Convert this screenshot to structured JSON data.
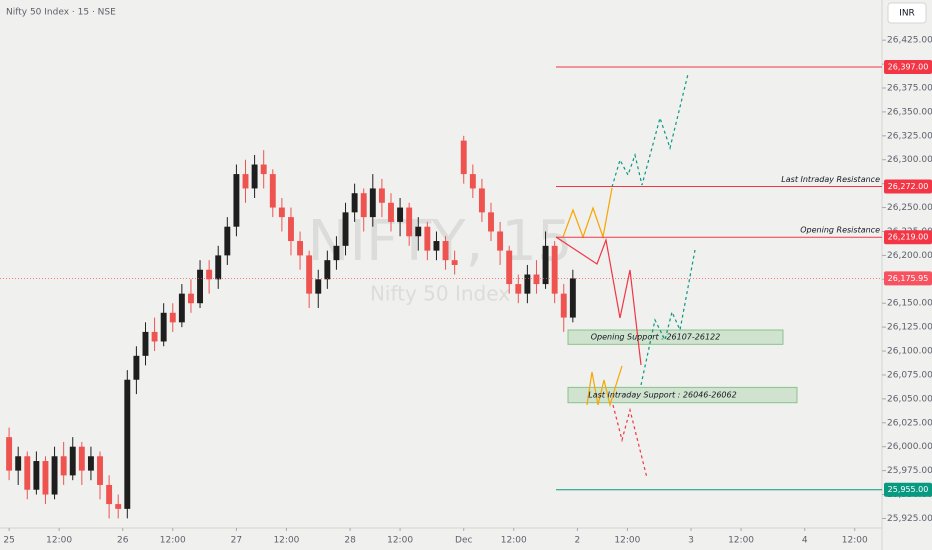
{
  "chart_data": {
    "type": "candlestick",
    "title": "Nifty 50 Index · 15 · NSE",
    "currency": "INR",
    "watermark": [
      "NIFTY, 15",
      "Nifty 50 Index"
    ],
    "up_color": "#1e1e1e",
    "down_color": "#ef5350",
    "x": [
      0,
      2,
      4,
      6,
      8,
      10,
      12,
      14,
      16,
      18,
      20,
      22,
      24,
      26,
      28,
      30,
      32,
      34,
      36,
      38,
      40,
      42,
      44,
      46,
      48,
      50,
      52,
      54,
      56,
      58,
      60,
      62,
      64,
      66,
      68,
      70,
      72,
      74,
      76,
      78,
      80,
      82,
      84,
      86,
      88,
      90,
      92,
      94,
      96,
      98,
      100,
      102,
      104,
      106,
      108,
      110,
      112,
      114,
      116,
      118,
      120,
      122,
      124
    ],
    "open": [
      26010,
      25975,
      25990,
      25955,
      25985,
      25950,
      25990,
      25970,
      26000,
      25975,
      25990,
      25960,
      25940,
      25935,
      26070,
      26095,
      26120,
      26110,
      26140,
      26130,
      26160,
      26150,
      26185,
      26175,
      26200,
      26230,
      26285,
      26270,
      26295,
      26285,
      26250,
      26240,
      26215,
      26200,
      26160,
      26175,
      26195,
      26210,
      26245,
      26265,
      26240,
      26270,
      26255,
      26235,
      26250,
      26220,
      26230,
      26205,
      26215,
      26195,
      26320,
      26285,
      26270,
      26245,
      26225,
      26205,
      26170,
      26160,
      26180,
      26170,
      26210,
      26160,
      26135
    ],
    "high": [
      26020,
      26000,
      25995,
      25995,
      25990,
      26000,
      26005,
      26010,
      26005,
      26000,
      25995,
      25970,
      25950,
      26080,
      26105,
      26130,
      26135,
      26150,
      26150,
      26170,
      26175,
      26195,
      26195,
      26210,
      26240,
      26295,
      26300,
      26305,
      26310,
      26290,
      26260,
      26250,
      26225,
      26205,
      26185,
      26205,
      26220,
      26255,
      26275,
      26270,
      26285,
      26280,
      26265,
      26260,
      26255,
      26240,
      26235,
      26225,
      26220,
      26205,
      26325,
      26295,
      26280,
      26255,
      26235,
      26210,
      26180,
      26190,
      26195,
      26225,
      26215,
      26170,
      26185
    ],
    "low": [
      25965,
      25960,
      25945,
      25950,
      25940,
      25945,
      25960,
      25965,
      25960,
      25965,
      25945,
      25925,
      25925,
      25925,
      26055,
      26085,
      26100,
      26105,
      26120,
      26125,
      26140,
      26145,
      26160,
      26165,
      26190,
      26220,
      26255,
      26260,
      26270,
      26240,
      26225,
      26200,
      26185,
      26145,
      26145,
      26165,
      26185,
      26200,
      26235,
      26225,
      26230,
      26240,
      26225,
      26220,
      26210,
      26205,
      26195,
      26195,
      26185,
      26180,
      26275,
      26260,
      26235,
      26215,
      26190,
      26160,
      26150,
      26150,
      26160,
      26165,
      26150,
      26120,
      26130
    ],
    "close": [
      25975,
      25990,
      25955,
      25985,
      25950,
      25990,
      25970,
      26000,
      25975,
      25990,
      25960,
      25940,
      25935,
      26070,
      26095,
      26120,
      26110,
      26140,
      26130,
      26160,
      26150,
      26185,
      26175,
      26200,
      26230,
      26285,
      26270,
      26295,
      26285,
      26250,
      26240,
      26215,
      26200,
      26160,
      26175,
      26195,
      26210,
      26245,
      26265,
      26240,
      26270,
      26255,
      26235,
      26250,
      26220,
      26230,
      26205,
      26215,
      26195,
      26190,
      26285,
      26270,
      26245,
      26225,
      26205,
      26170,
      26160,
      26180,
      26170,
      26210,
      26160,
      26135,
      26175.95
    ],
    "xlim": [
      -2,
      192
    ],
    "xticks": [
      {
        "value": 0,
        "label": "25"
      },
      {
        "value": 11,
        "label": "12:00"
      },
      {
        "value": 25,
        "label": "26"
      },
      {
        "value": 36,
        "label": "12:00"
      },
      {
        "value": 50,
        "label": "27"
      },
      {
        "value": 61,
        "label": "12:00"
      },
      {
        "value": 75,
        "label": "28"
      },
      {
        "value": 86,
        "label": "12:00"
      },
      {
        "value": 100,
        "label": "Dec"
      },
      {
        "value": 111,
        "label": "12:00"
      },
      {
        "value": 125,
        "label": "2"
      },
      {
        "value": 136,
        "label": "12:00"
      },
      {
        "value": 150,
        "label": "3"
      },
      {
        "value": 161,
        "label": "12:00"
      },
      {
        "value": 175,
        "label": "4"
      },
      {
        "value": 186,
        "label": "12:00"
      }
    ],
    "ylim": [
      25915,
      26467
    ],
    "yticks": [
      {
        "value": 25925,
        "label": "25,925.00"
      },
      {
        "value": 25950,
        "label": "25,950.00"
      },
      {
        "value": 25975,
        "label": "25,975.00"
      },
      {
        "value": 26000,
        "label": "26,000.00"
      },
      {
        "value": 26025,
        "label": "26,025.00"
      },
      {
        "value": 26050,
        "label": "26,050.00"
      },
      {
        "value": 26075,
        "label": "26,075.00"
      },
      {
        "value": 26100,
        "label": "26,100.00"
      },
      {
        "value": 26125,
        "label": "26,125.00"
      },
      {
        "value": 26150,
        "label": "26,150.00"
      },
      {
        "value": 26175,
        "label": "26,175.00"
      },
      {
        "value": 26200,
        "label": "26,200.00"
      },
      {
        "value": 26225,
        "label": "26,225.00"
      },
      {
        "value": 26250,
        "label": "26,250.00"
      },
      {
        "value": 26275,
        "label": "26,275.00"
      },
      {
        "value": 26300,
        "label": "26,300.00"
      },
      {
        "value": 26325,
        "label": "26,325.00"
      },
      {
        "value": 26350,
        "label": "26,350.00"
      },
      {
        "value": 26375,
        "label": "26,375.00"
      },
      {
        "value": 26400,
        "label": "26,400.00"
      },
      {
        "value": 26425,
        "label": "26,425.00"
      }
    ],
    "levels": [
      {
        "value": 26397,
        "label": "26,397.00",
        "color": "#f23645"
      },
      {
        "value": 26272,
        "label": "26,272.00",
        "color": "#f23645",
        "annotation": "Last Intraday Resistance"
      },
      {
        "value": 26219,
        "label": "26,219.00",
        "color": "#f23645",
        "annotation": "Opening Resistance"
      },
      {
        "value": 25955,
        "label": "25,955.00",
        "color": "#089981"
      }
    ],
    "last_price": {
      "value": 26175.95,
      "label": "26,175.95",
      "color": "#f7525f"
    },
    "zones": [
      {
        "low": 26107,
        "high": 26122,
        "label": "Opening Support : 26107-26122"
      },
      {
        "low": 26046,
        "high": 26062,
        "label": "Last Intraday Support : 26046-26062"
      }
    ]
  }
}
